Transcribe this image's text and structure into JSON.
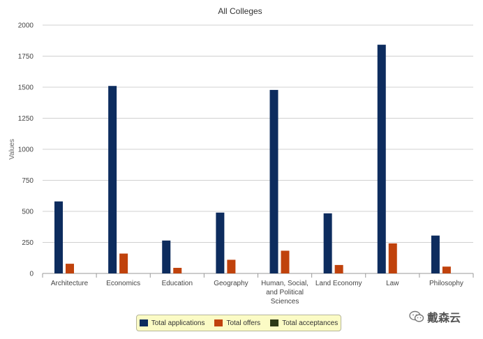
{
  "chart_data": {
    "type": "bar",
    "title": "All Colleges",
    "xlabel": "",
    "ylabel": "Values",
    "ylim": [
      0,
      2000
    ],
    "yticks": [
      0,
      250,
      500,
      750,
      1000,
      1250,
      1500,
      1750,
      2000
    ],
    "categories": [
      "Architecture",
      "Economics",
      "Education",
      "Geography",
      "Human, Social, and Political Sciences",
      "Land Economy",
      "Law",
      "Philosophy"
    ],
    "category_label_lines": [
      [
        "Architecture"
      ],
      [
        "Economics"
      ],
      [
        "Education"
      ],
      [
        "Geography"
      ],
      [
        "Human, Social,",
        "and Political",
        "Sciences"
      ],
      [
        "Land Economy"
      ],
      [
        "Law"
      ],
      [
        "Philosophy"
      ]
    ],
    "series": [
      {
        "name": "Total applications",
        "color": "#0d2c5e",
        "values": [
          580,
          1510,
          265,
          490,
          1478,
          484,
          1842,
          305
        ]
      },
      {
        "name": "Total offers",
        "color": "#c0420c",
        "values": [
          78,
          160,
          45,
          110,
          183,
          68,
          242,
          55
        ]
      },
      {
        "name": "Total acceptances",
        "color": "#2d3a17",
        "values": [
          0,
          0,
          0,
          0,
          0,
          0,
          0,
          0
        ]
      }
    ],
    "grid": true,
    "legend_position": "bottom"
  },
  "watermark": {
    "text": "戴森云",
    "icon": "wechat-icon"
  }
}
